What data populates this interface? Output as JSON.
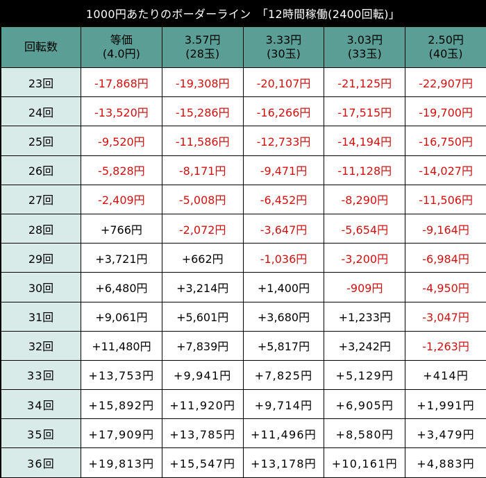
{
  "title": "1000円あたりのボーダーライン　「12時間稼働(2400回転)」",
  "colors": {
    "header_bg": "#5a9e96",
    "row_label_bg": "#d8ebe9",
    "negative": "#d01010",
    "positive": "#000000"
  },
  "header": {
    "label": "回転数",
    "columns": [
      {
        "line1": "等価",
        "line2": "(4.0円)"
      },
      {
        "line1": "3.57円",
        "line2": "(28玉)"
      },
      {
        "line1": "3.33円",
        "line2": "(30玉)"
      },
      {
        "line1": "3.03円",
        "line2": "(33玉)"
      },
      {
        "line1": "2.50円",
        "line2": "(40玉)"
      }
    ]
  },
  "rows": [
    {
      "label": "23回",
      "values": [
        "-17,868円",
        "-19,308円",
        "-20,107円",
        "-21,125円",
        "-22,907円"
      ]
    },
    {
      "label": "24回",
      "values": [
        "-13,520円",
        "-15,286円",
        "-16,266円",
        "-17,515円",
        "-19,700円"
      ]
    },
    {
      "label": "25回",
      "values": [
        "-9,520円",
        "-11,586円",
        "-12,733円",
        "-14,194円",
        "-16,750円"
      ]
    },
    {
      "label": "26回",
      "values": [
        "-5,828円",
        "-8,171円",
        "-9,471円",
        "-11,128円",
        "-14,027円"
      ]
    },
    {
      "label": "27回",
      "values": [
        "-2,409円",
        "-5,008円",
        "-6,452円",
        "-8,290円",
        "-11,506円"
      ]
    },
    {
      "label": "28回",
      "values": [
        "+766円",
        "-2,072円",
        "-3,647円",
        "-5,654円",
        "-9,164円"
      ]
    },
    {
      "label": "29回",
      "values": [
        "+3,721円",
        "+662円",
        "-1,036円",
        "-3,200円",
        "-6,984円"
      ]
    },
    {
      "label": "30回",
      "values": [
        "+6,480円",
        "+3,214円",
        "+1,400円",
        "-909円",
        "-4,950円"
      ]
    },
    {
      "label": "31回",
      "values": [
        "+9,061円",
        "+5,601円",
        "+3,680円",
        "+1,233円",
        "-3,047円"
      ]
    },
    {
      "label": "32回",
      "values": [
        "+11,480円",
        "+7,839円",
        "+5,817円",
        "+3,242円",
        "-1,263円"
      ]
    },
    {
      "label": "33回",
      "values": [
        "+13,753円",
        "+9,941円",
        "+7,825円",
        "+5,129円",
        "+414円"
      ]
    },
    {
      "label": "34回",
      "values": [
        "+15,892円",
        "+11,920円",
        "+9,714円",
        "+6,905円",
        "+1,991円"
      ]
    },
    {
      "label": "35回",
      "values": [
        "+17,909円",
        "+13,785円",
        "+11,496円",
        "+8,580円",
        "+3,479円"
      ]
    },
    {
      "label": "36回",
      "values": [
        "+19,813円",
        "+15,547円",
        "+13,178円",
        "+10,161円",
        "+4,883円"
      ]
    }
  ]
}
